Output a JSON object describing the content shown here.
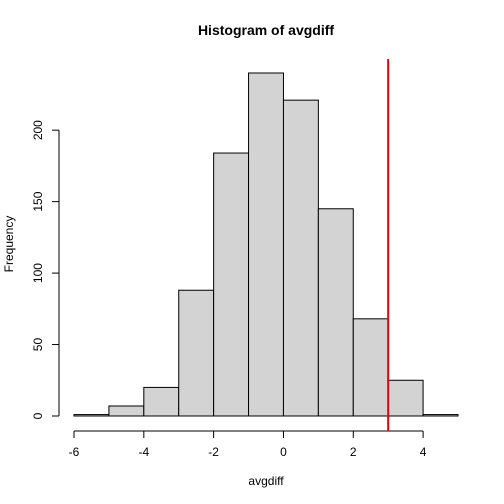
{
  "chart_data": {
    "type": "bar",
    "title": "Histogram of avgdiff",
    "xlabel": "avgdiff",
    "ylabel": "Frequency",
    "bins": [
      {
        "x0": -6,
        "x1": -5,
        "count": 1
      },
      {
        "x0": -5,
        "x1": -4,
        "count": 7
      },
      {
        "x0": -4,
        "x1": -3,
        "count": 20
      },
      {
        "x0": -3,
        "x1": -2,
        "count": 88
      },
      {
        "x0": -2,
        "x1": -1,
        "count": 184
      },
      {
        "x0": -1,
        "x1": 0,
        "count": 240
      },
      {
        "x0": 0,
        "x1": 1,
        "count": 221
      },
      {
        "x0": 1,
        "x1": 2,
        "count": 145
      },
      {
        "x0": 2,
        "x1": 3,
        "count": 68
      },
      {
        "x0": 3,
        "x1": 4,
        "count": 25
      },
      {
        "x0": 4,
        "x1": 5,
        "count": 1
      }
    ],
    "xlim": [
      -6,
      5
    ],
    "ylim": [
      0,
      240
    ],
    "x_ticks": [
      "-6",
      "-4",
      "-2",
      "0",
      "2",
      "4"
    ],
    "y_ticks": [
      "0",
      "50",
      "100",
      "150",
      "200"
    ],
    "vline": {
      "x": 3,
      "color": "#e8000b"
    },
    "bar_fill": "#d3d3d3",
    "bar_stroke": "#000000",
    "grid": false,
    "legend": "none"
  }
}
